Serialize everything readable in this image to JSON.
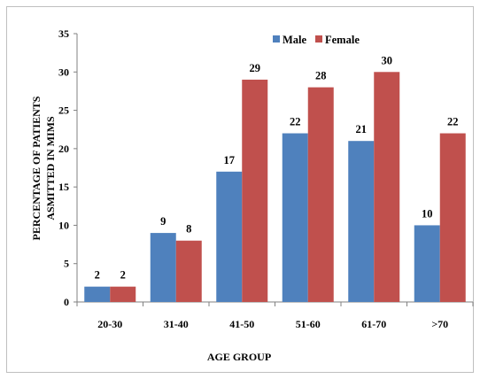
{
  "chart_data": {
    "type": "bar",
    "categories": [
      "20-30",
      "31-40",
      "41-50",
      "51-60",
      "61-70",
      ">70"
    ],
    "series": [
      {
        "name": "Male",
        "color": "#4f81bd",
        "values": [
          2,
          9,
          17,
          22,
          21,
          10
        ]
      },
      {
        "name": "Female",
        "color": "#c0504d",
        "values": [
          2,
          8,
          29,
          28,
          30,
          22
        ]
      }
    ],
    "xlabel": "AGE GROUP",
    "ylabel_lines": [
      "PERCENTAGE OF PATIENTS",
      "ASMITTED IN MIMS"
    ],
    "ylim": [
      0,
      35
    ],
    "yticks": [
      0,
      5,
      10,
      15,
      20,
      25,
      30,
      35
    ],
    "grid": false,
    "legend_position": "top-right",
    "data_labels": true
  }
}
